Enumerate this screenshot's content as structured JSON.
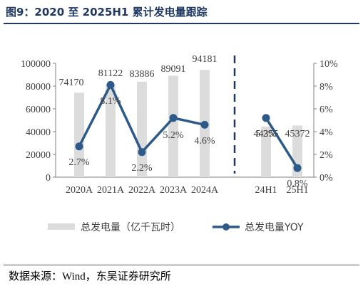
{
  "title": "图9：2020 至 2025H1 累计发电量跟踪",
  "source": {
    "label": "数据来源：",
    "text": "Wind，东吴证券研究所"
  },
  "chart_data": {
    "type": "bar",
    "categories": [
      "2020A",
      "2021A",
      "2022A",
      "2023A",
      "2024A",
      "24H1",
      "25H1"
    ],
    "series": [
      {
        "name": "总发电量（亿千瓦时）",
        "type": "bar",
        "axis": "left",
        "values": [
          74170,
          81122,
          83886,
          89091,
          94181,
          44355,
          45372
        ],
        "labels": [
          "74170",
          "81122",
          "83886",
          "89091",
          "94181",
          "44355",
          "45372"
        ]
      },
      {
        "name": "总发电量YOY",
        "type": "line",
        "axis": "right",
        "unit": "%",
        "values": [
          2.7,
          8.1,
          2.2,
          5.2,
          4.6,
          5.2,
          0.8
        ],
        "labels": [
          "2.7%",
          "8.1%",
          "2.2%",
          "5.2%",
          "4.6%",
          "5.2%",
          "0.8%"
        ]
      }
    ],
    "segments": [
      [
        0,
        4
      ],
      [
        5,
        6
      ]
    ],
    "left_axis": {
      "ylim": [
        0,
        100000
      ],
      "ticks": [
        "0",
        "20000",
        "40000",
        "60000",
        "80000",
        "100000"
      ]
    },
    "right_axis": {
      "ylim": [
        0,
        10
      ],
      "ticks": [
        "0%",
        "2%",
        "4%",
        "6%",
        "8%",
        "10%"
      ]
    },
    "grid": false,
    "divider": "dashed vertical line between annual and half-year data",
    "legend_position": "bottom",
    "colors": {
      "bar": "#dcdcdc",
      "line": "#2e5a8a",
      "title": "#1f3864",
      "divider": "#1f3864"
    }
  }
}
